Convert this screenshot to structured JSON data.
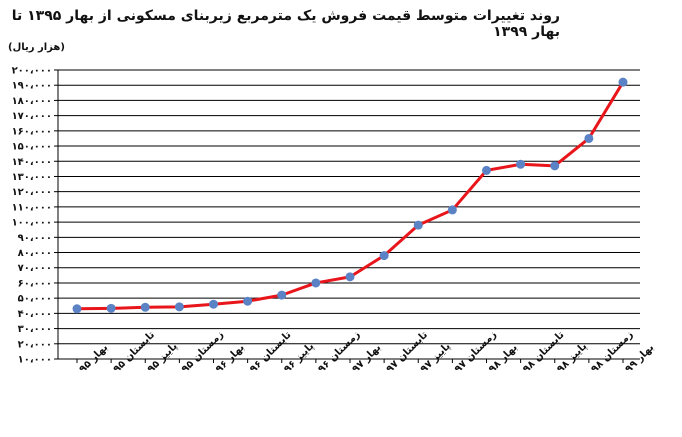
{
  "chart_data": {
    "type": "line",
    "title": "روند تغییرات متوسط قیمت فروش یک مترمربع زیربنای مسکونی از بهار ۱۳۹۵ تا بهار ۱۳۹۹",
    "ylabel": "(هزار ریال)",
    "xlabel": "",
    "ylim": [
      10000,
      200000
    ],
    "y_ticks": [
      10000,
      20000,
      30000,
      40000,
      50000,
      60000,
      70000,
      80000,
      90000,
      100000,
      110000,
      120000,
      130000,
      140000,
      150000,
      160000,
      170000,
      180000,
      190000,
      200000
    ],
    "y_tick_labels": [
      "۱۰،۰۰۰",
      "۲۰،۰۰۰",
      "۳۰،۰۰۰",
      "۴۰،۰۰۰",
      "۵۰،۰۰۰",
      "۶۰،۰۰۰",
      "۷۰،۰۰۰",
      "۸۰،۰۰۰",
      "۹۰،۰۰۰",
      "۱۰۰،۰۰۰",
      "۱۱۰،۰۰۰",
      "۱۲۰،۰۰۰",
      "۱۳۰،۰۰۰",
      "۱۴۰،۰۰۰",
      "۱۵۰،۰۰۰",
      "۱۶۰،۰۰۰",
      "۱۷۰،۰۰۰",
      "۱۸۰،۰۰۰",
      "۱۹۰،۰۰۰",
      "۲۰۰،۰۰۰"
    ],
    "categories": [
      "بهار ۹۵",
      "تابستان ۹۵",
      "پاییز ۹۵",
      "زمستان ۹۵",
      "بهار ۹۶",
      "تابستان ۹۶",
      "پاییز ۹۶",
      "زمستان ۹۶",
      "بهار ۹۷",
      "تابستان ۹۷",
      "پاییز ۹۷",
      "زمستان ۹۷",
      "بهار ۹۸",
      "تابستان ۹۸",
      "پاییز ۹۸",
      "زمستان ۹۸",
      "بهار ۹۹"
    ],
    "series": [
      {
        "values": [
          43000,
          43300,
          44000,
          44300,
          46000,
          48000,
          52000,
          60000,
          64000,
          78000,
          98000,
          108000,
          134000,
          138000,
          137000,
          155000,
          192000
        ],
        "color": "#e8151b",
        "marker_color": "#5b82c4"
      }
    ],
    "grid": true,
    "legend": "none"
  }
}
